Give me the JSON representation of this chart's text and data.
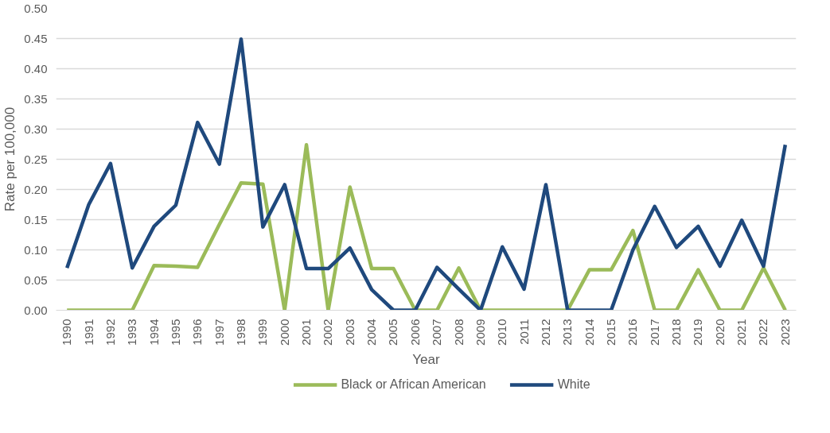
{
  "chart_data": {
    "type": "line",
    "xlabel": "Year",
    "ylabel": "Rate per 100,000",
    "categories": [
      "1990",
      "1991",
      "1992",
      "1993",
      "1994",
      "1995",
      "1996",
      "1997",
      "1998",
      "1999",
      "2000",
      "2001",
      "2002",
      "2003",
      "2004",
      "2005",
      "2006",
      "2007",
      "2008",
      "2009",
      "2010",
      "2011",
      "2012",
      "2013",
      "2014",
      "2015",
      "2016",
      "2017",
      "2018",
      "2019",
      "2020",
      "2021",
      "2022",
      "2023"
    ],
    "series": [
      {
        "name": "Black or African American",
        "color": "#9bbb59",
        "values": [
          0,
          0,
          0,
          0,
          0.074,
          0.073,
          0.071,
          0.142,
          0.211,
          0.209,
          0,
          0.274,
          0,
          0.204,
          0.069,
          0.069,
          0,
          0,
          0.07,
          0,
          0,
          0,
          0,
          0,
          0.067,
          0.067,
          0.132,
          0,
          0,
          0.067,
          0,
          0,
          0.07,
          0
        ]
      },
      {
        "name": "White",
        "color": "#1f497d",
        "values": [
          0.07,
          0.175,
          0.243,
          0.07,
          0.139,
          0.174,
          0.311,
          0.242,
          0.449,
          0.138,
          0.208,
          0.069,
          0.069,
          0.103,
          0.034,
          0,
          0,
          0.071,
          0.035,
          0,
          0.105,
          0.035,
          0.208,
          0,
          0,
          0,
          0.1,
          0.172,
          0.104,
          0.139,
          0.073,
          0.149,
          0.073,
          0.274
        ]
      }
    ],
    "ylim": [
      0,
      0.5
    ],
    "yticks": [
      {
        "value": 0,
        "label": "0.00"
      },
      {
        "value": 0.05,
        "label": "0.05"
      },
      {
        "value": 0.1,
        "label": "0.10"
      },
      {
        "value": 0.15,
        "label": "0.15"
      },
      {
        "value": 0.2,
        "label": "0.20"
      },
      {
        "value": 0.25,
        "label": "0.25"
      },
      {
        "value": 0.3,
        "label": "0.30"
      },
      {
        "value": 0.35,
        "label": "0.35"
      },
      {
        "value": 0.4,
        "label": "0.40"
      },
      {
        "value": 0.45,
        "label": "0.45"
      },
      {
        "value": 0.5,
        "label": "0.50"
      }
    ],
    "grid": "y",
    "legend": "bottom",
    "marker": "none",
    "line_style": "solid"
  }
}
